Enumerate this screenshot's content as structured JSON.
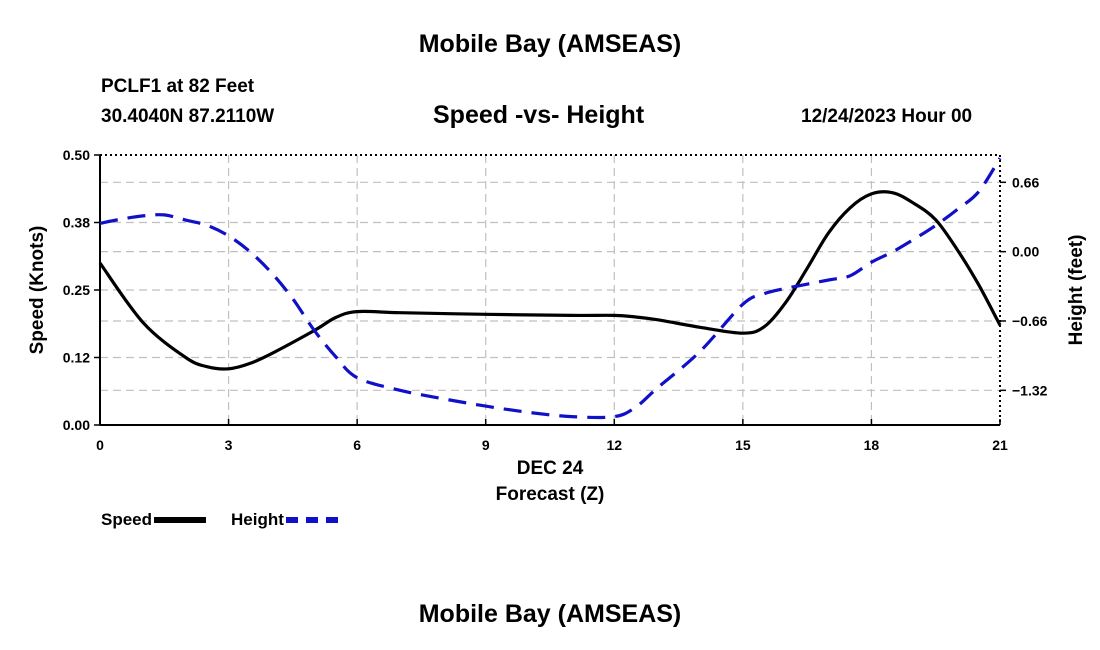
{
  "header": {
    "title": "Mobile Bay (AMSEAS)",
    "station": "PCLF1 at 82 Feet",
    "coords": "30.4040N  87.2110W",
    "subtitle": "Speed -vs- Height",
    "datetime": "12/24/2023 Hour 00"
  },
  "footer": {
    "title": "Mobile Bay (AMSEAS)"
  },
  "colors": {
    "speed": "#000000",
    "height": "#1010c8",
    "grid": "#c0c0c0"
  },
  "chart_data": {
    "type": "line",
    "title": "Speed -vs- Height",
    "xlabel_date": "DEC 24",
    "xlabel": "Forecast (Z)",
    "ylabel_left": "Speed (Knots)",
    "ylabel_right": "Height (feet)",
    "xlim": [
      0,
      21
    ],
    "ylim_left": [
      0,
      0.5
    ],
    "ylim_right": [
      -1.65,
      0.92
    ],
    "x_ticks": [
      0,
      3,
      6,
      9,
      12,
      15,
      18,
      21
    ],
    "x_tick_labels": [
      "0",
      "3",
      "6",
      "9",
      "12",
      "15",
      "18",
      "21"
    ],
    "left_ticks": [
      0.0,
      0.125,
      0.25,
      0.375,
      0.5
    ],
    "left_tick_labels": [
      "0.00",
      "0.12",
      "0.25",
      "0.38",
      "0.50"
    ],
    "right_ticks": [
      0.66,
      0.0,
      -0.66,
      -1.32
    ],
    "right_tick_labels": [
      "0.66",
      "0.00",
      "−0.66",
      "−1.32"
    ],
    "series": [
      {
        "name": "Speed",
        "axis": "left",
        "style": "solid",
        "x": [
          0,
          1,
          2,
          2.5,
          3,
          3.5,
          4,
          5,
          5.5,
          6,
          7,
          9,
          11,
          12,
          12.5,
          13,
          14,
          15,
          15.5,
          16,
          16.5,
          17,
          17.5,
          18,
          18.5,
          19,
          19.5,
          20,
          20.5,
          21
        ],
        "y": [
          0.3,
          0.19,
          0.125,
          0.108,
          0.104,
          0.114,
          0.132,
          0.175,
          0.199,
          0.21,
          0.208,
          0.205,
          0.203,
          0.203,
          0.2,
          0.195,
          0.181,
          0.17,
          0.182,
          0.227,
          0.29,
          0.356,
          0.402,
          0.428,
          0.43,
          0.41,
          0.38,
          0.325,
          0.26,
          0.185
        ]
      },
      {
        "name": "Height",
        "axis": "right",
        "style": "dashed",
        "x": [
          0,
          0.5,
          1,
          1.5,
          2,
          2.5,
          3,
          3.5,
          4,
          4.5,
          5,
          5.5,
          6,
          7,
          8,
          9,
          10,
          11,
          12,
          12.5,
          13,
          14,
          15,
          15.5,
          16,
          17,
          17.5,
          18,
          18.5,
          19,
          19.5,
          20,
          20.5,
          21
        ],
        "y": [
          0.27,
          0.31,
          0.34,
          0.35,
          0.3,
          0.25,
          0.15,
          0.0,
          -0.2,
          -0.45,
          -0.75,
          -1.0,
          -1.2,
          -1.32,
          -1.4,
          -1.47,
          -1.53,
          -1.57,
          -1.57,
          -1.48,
          -1.3,
          -0.95,
          -0.5,
          -0.4,
          -0.35,
          -0.27,
          -0.23,
          -0.1,
          0.0,
          0.12,
          0.25,
          0.4,
          0.57,
          0.89
        ]
      }
    ]
  },
  "legend": {
    "speed_label": "Speed",
    "height_label": "Height"
  }
}
